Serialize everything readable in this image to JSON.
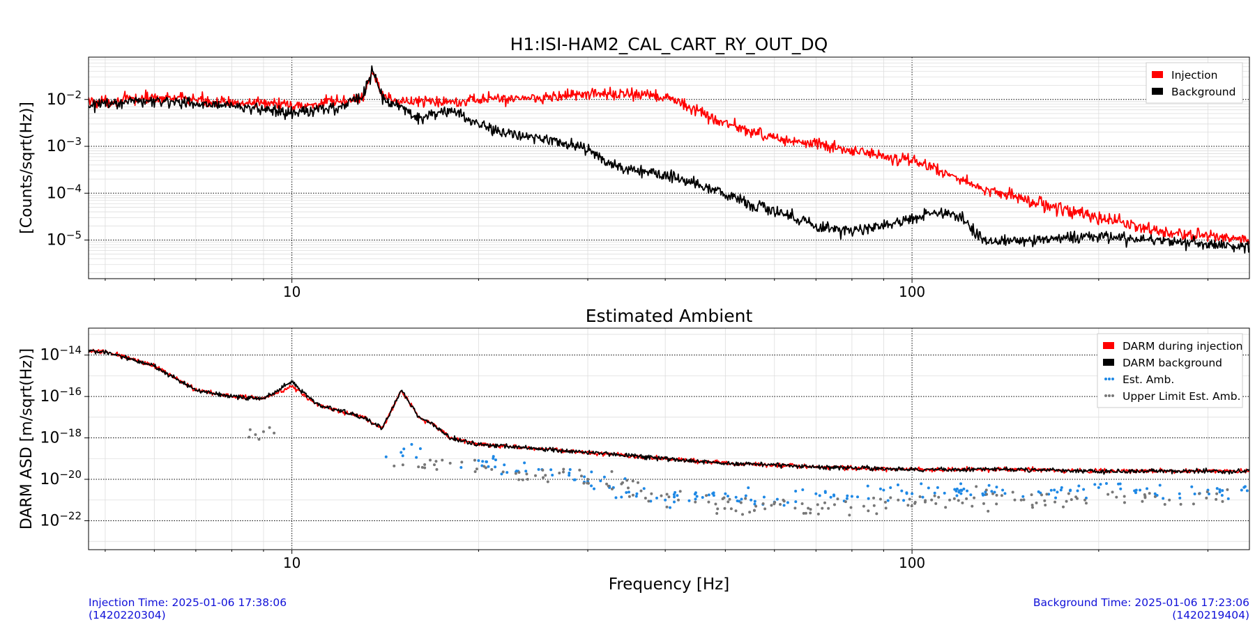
{
  "chart_data": [
    {
      "type": "line",
      "title": "H1:ISI-HAM2_CAL_CART_RY_OUT_DQ",
      "xlabel": "",
      "ylabel": "[Counts/sqrt(Hz)]",
      "x_scale": "log",
      "y_scale": "log",
      "xlim": [
        4.7,
        350
      ],
      "ylim": [
        1.5e-06,
        0.08
      ],
      "x_tick_labels": [
        "10",
        "100"
      ],
      "y_tick_labels": [
        "10^-2",
        "10^-3",
        "10^-4",
        "10^-5"
      ],
      "grid": true,
      "legend_position": "top-right",
      "series": [
        {
          "name": "Injection",
          "color": "#ff0000",
          "x": [
            5,
            6,
            7,
            8,
            9,
            10,
            11,
            12,
            13,
            13.5,
            14,
            15,
            17,
            20,
            25,
            30,
            35,
            40,
            45,
            50,
            60,
            70,
            80,
            90,
            100,
            110,
            120,
            130,
            140,
            150,
            170,
            200,
            250,
            300,
            350
          ],
          "y": [
            0.009,
            0.011,
            0.01,
            0.008,
            0.009,
            0.007,
            0.008,
            0.009,
            0.011,
            0.04,
            0.012,
            0.009,
            0.009,
            0.01,
            0.011,
            0.013,
            0.013,
            0.011,
            0.006,
            0.003,
            0.0015,
            0.0011,
            0.0008,
            0.0006,
            0.0005,
            0.0003,
            0.0002,
            0.00012,
            0.0001,
            8e-05,
            5e-05,
            3e-05,
            1.5e-05,
            1.2e-05,
            1e-05
          ]
        },
        {
          "name": "Background",
          "color": "#000000",
          "x": [
            5,
            6,
            7,
            8,
            9,
            10,
            11,
            12,
            13,
            13.5,
            14,
            15,
            16,
            17,
            18,
            20,
            22,
            25,
            27,
            29,
            30,
            32,
            35,
            40,
            45,
            50,
            55,
            60,
            65,
            70,
            80,
            90,
            100,
            110,
            120,
            130,
            150,
            200,
            250,
            300,
            350
          ],
          "y": [
            0.008,
            0.01,
            0.008,
            0.007,
            0.006,
            0.005,
            0.006,
            0.007,
            0.012,
            0.04,
            0.01,
            0.007,
            0.004,
            0.005,
            0.006,
            0.003,
            0.002,
            0.0015,
            0.0012,
            0.001,
            0.0008,
            0.0005,
            0.0003,
            0.00025,
            0.00015,
            0.0001,
            6e-05,
            4e-05,
            3e-05,
            2e-05,
            1.5e-05,
            2e-05,
            3e-05,
            4e-05,
            3e-05,
            1e-05,
            1e-05,
            1.2e-05,
            1e-05,
            8e-06,
            7e-06
          ]
        }
      ]
    },
    {
      "type": "line",
      "title": "Estimated Ambient",
      "xlabel": "Frequency [Hz]",
      "ylabel": "DARM ASD [m/sqrt(Hz)]",
      "x_scale": "log",
      "y_scale": "log",
      "xlim": [
        4.7,
        350
      ],
      "ylim": [
        4e-24,
        2e-13
      ],
      "x_tick_labels": [
        "10",
        "100"
      ],
      "y_tick_labels": [
        "10^-14",
        "10^-16",
        "10^-18",
        "10^-20",
        "10^-22"
      ],
      "grid": true,
      "legend_position": "top-right",
      "series": [
        {
          "name": "DARM during injection",
          "color": "#ff0000",
          "x": [
            5,
            6,
            7,
            8,
            9,
            10,
            11,
            12,
            13,
            14,
            15,
            16,
            17,
            18,
            20,
            25,
            30,
            40,
            50,
            70,
            100,
            150,
            200,
            300,
            350
          ],
          "y": [
            1.5e-14,
            3e-15,
            2e-16,
            1e-16,
            8e-17,
            3e-16,
            4e-17,
            2e-17,
            1e-17,
            3e-18,
            2e-16,
            1e-17,
            4e-18,
            1e-18,
            5e-19,
            3e-19,
            2e-19,
            1e-19,
            6e-20,
            4e-20,
            3e-20,
            3e-20,
            2.5e-20,
            2.5e-20,
            2.5e-20
          ]
        },
        {
          "name": "DARM background",
          "color": "#000000",
          "x": [
            5,
            6,
            7,
            8,
            9,
            10,
            11,
            12,
            13,
            14,
            15,
            16,
            17,
            18,
            20,
            25,
            30,
            40,
            50,
            70,
            100,
            150,
            200,
            300,
            350
          ],
          "y": [
            1.5e-14,
            3e-15,
            2e-16,
            1e-16,
            8e-17,
            5e-16,
            4e-17,
            2e-17,
            1e-17,
            3e-18,
            2e-16,
            1e-17,
            4e-18,
            1e-18,
            5e-19,
            3e-19,
            2e-19,
            1e-19,
            6e-20,
            4e-20,
            3e-20,
            3e-20,
            2.5e-20,
            2.5e-20,
            2.5e-20
          ]
        },
        {
          "name": "Est. Amb.",
          "color": "#1e88e5",
          "x": [
            15,
            20,
            22,
            25,
            28,
            30,
            33,
            36,
            40,
            45,
            50,
            55,
            60,
            70,
            80,
            90,
            100,
            110,
            120,
            130,
            140,
            160,
            180,
            200,
            230,
            270,
            300,
            340
          ],
          "y": [
            2e-19,
            8e-20,
            5e-20,
            3e-20,
            2e-20,
            8e-21,
            4e-21,
            2e-21,
            1e-21,
            1.5e-21,
            2e-21,
            1e-21,
            8e-22,
            2e-21,
            1.5e-21,
            3e-21,
            2e-21,
            4e-21,
            3e-21,
            2e-21,
            3e-21,
            2.5e-21,
            3e-21,
            4e-21,
            3e-21,
            2e-21,
            3e-21,
            3e-21
          ]
        },
        {
          "name": "Upper Limit Est. Amb.",
          "color": "#777777",
          "x": [
            9,
            16,
            18,
            21,
            24,
            27,
            30,
            34,
            38,
            42,
            47,
            52,
            56,
            62,
            68,
            75,
            85,
            95,
            105,
            115,
            125,
            135,
            150,
            170,
            190,
            220,
            260,
            310
          ],
          "y": [
            2e-18,
            4e-20,
            6e-20,
            3e-20,
            1e-20,
            2e-20,
            1e-20,
            6e-21,
            2e-21,
            1e-21,
            8e-22,
            3e-22,
            5e-22,
            1e-21,
            4e-22,
            6e-22,
            3e-22,
            1e-21,
            8e-22,
            1e-21,
            5e-22,
            2e-21,
            1e-21,
            8e-22,
            1e-21,
            1.5e-21,
            1e-21,
            2e-21
          ]
        }
      ]
    }
  ],
  "footer": {
    "injection_time": "Injection Time: 2025-01-06 17:38:06",
    "injection_gps": "(1420220304)",
    "background_time": "Background Time: 2025-01-06 17:23:06",
    "background_gps": "(1420219404)"
  }
}
